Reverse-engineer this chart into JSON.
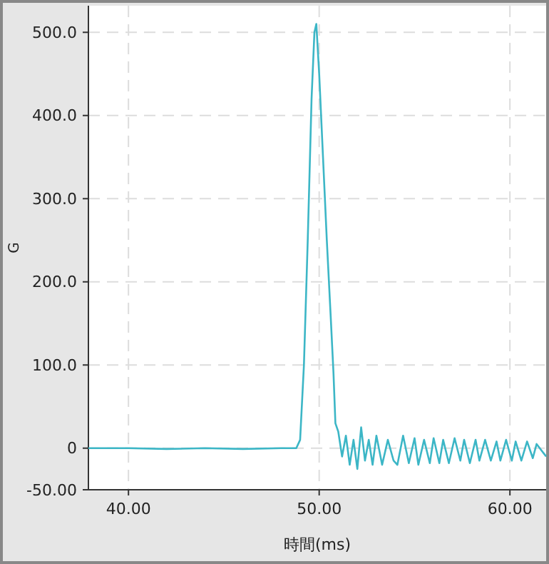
{
  "chart_data": {
    "type": "line",
    "xlabel": "時間(ms)",
    "ylabel": "G",
    "x": [
      37.9,
      40,
      42,
      44,
      46,
      48,
      48.8,
      49.0,
      49.2,
      49.4,
      49.6,
      49.75,
      49.85,
      50.0,
      50.2,
      50.4,
      50.6,
      50.75,
      50.85,
      51.0,
      51.2,
      51.4,
      51.6,
      51.8,
      52.0,
      52.2,
      52.4,
      52.6,
      52.8,
      53.0,
      53.3,
      53.6,
      53.9,
      54.1,
      54.4,
      54.7,
      55.0,
      55.2,
      55.5,
      55.8,
      56.0,
      56.3,
      56.5,
      56.8,
      57.1,
      57.4,
      57.6,
      57.9,
      58.2,
      58.4,
      58.7,
      59.0,
      59.3,
      59.5,
      59.8,
      60.1,
      60.3,
      60.6,
      60.9,
      61.2,
      61.4,
      61.9
    ],
    "series": [
      {
        "color": "#3cb6c6",
        "values": [
          0,
          0,
          -1,
          0,
          -1,
          0,
          0,
          10,
          100,
          250,
          420,
          500,
          510,
          450,
          350,
          250,
          160,
          90,
          30,
          20,
          -10,
          15,
          -20,
          10,
          -25,
          25,
          -15,
          10,
          -20,
          15,
          -20,
          10,
          -15,
          -20,
          15,
          -18,
          12,
          -20,
          10,
          -18,
          12,
          -18,
          10,
          -18,
          12,
          -15,
          10,
          -18,
          10,
          -15,
          10,
          -15,
          8,
          -15,
          10,
          -15,
          8,
          -15,
          8,
          -12,
          5,
          -10
        ]
      }
    ],
    "xlim": [
      37.9,
      61.9
    ],
    "ylim": [
      -50,
      532
    ],
    "xticks": [
      {
        "value": 40,
        "label": "40.00"
      },
      {
        "value": 50,
        "label": "50.00"
      },
      {
        "value": 60,
        "label": "60.00"
      }
    ],
    "yticks": [
      {
        "value": -50,
        "label": "-50.00"
      },
      0,
      {
        "value": 100,
        "label": "100.0"
      },
      {
        "value": 200,
        "label": "200.0"
      },
      {
        "value": 300,
        "label": "300.0"
      },
      {
        "value": 400,
        "label": "400.0"
      },
      {
        "value": 500,
        "label": "500.0"
      }
    ],
    "grid": true,
    "line_style": "solid",
    "marker": "none"
  }
}
